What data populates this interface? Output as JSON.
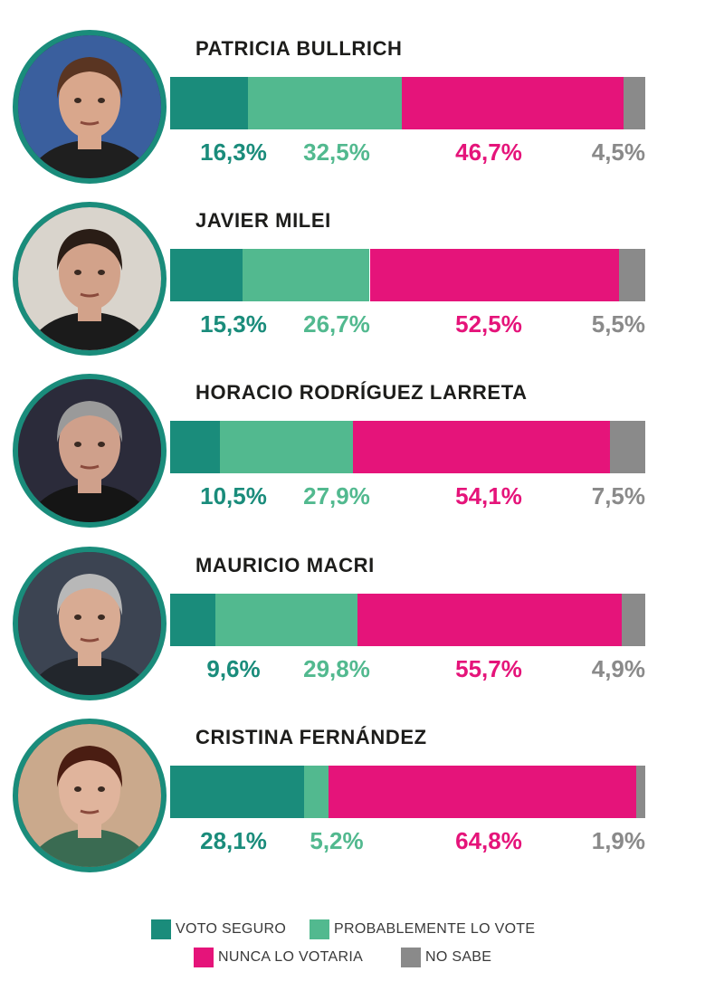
{
  "chart_data": {
    "type": "bar",
    "stacked": true,
    "orientation": "horizontal",
    "categories": [
      "PATRICIA BULLRICH",
      "JAVIER MILEI",
      "HORACIO RODRÍGUEZ LARRETA",
      "MAURICIO MACRI",
      "CRISTINA FERNÁNDEZ"
    ],
    "series": [
      {
        "name": "VOTO SEGURO",
        "color": "#1a8c7b",
        "values": [
          16.3,
          15.3,
          10.5,
          9.6,
          28.1
        ],
        "labels": [
          "16,3%",
          "15,3%",
          "10,5%",
          "9,6%",
          "28,1%"
        ]
      },
      {
        "name": "PROBABLEMENTE LO VOTE",
        "color": "#52b98f",
        "values": [
          32.5,
          26.7,
          27.9,
          29.8,
          5.2
        ],
        "labels": [
          "32,5%",
          "26,7%",
          "27,9%",
          "29,8%",
          "5,2%"
        ]
      },
      {
        "name": "NUNCA LO VOTARIA",
        "color": "#e5147a",
        "values": [
          46.7,
          52.5,
          54.1,
          55.7,
          64.8
        ],
        "labels": [
          "46,7%",
          "52,5%",
          "54,1%",
          "55,7%",
          "64,8%"
        ]
      },
      {
        "name": "NO SABE",
        "color": "#8a8a8a",
        "values": [
          4.5,
          5.5,
          7.5,
          4.9,
          1.9
        ],
        "labels": [
          "4,5%",
          "5,5%",
          "7,5%",
          "4,9%",
          "1,9%"
        ]
      }
    ],
    "legend_position": "bottom-center",
    "grid": false
  },
  "candidates": [
    {
      "name": "PATRICIA BULLRICH",
      "photo_icon": "patricia-bullrich-portrait-icon"
    },
    {
      "name": "JAVIER MILEI",
      "photo_icon": "javier-milei-portrait-icon"
    },
    {
      "name": "HORACIO RODRÍGUEZ LARRETA",
      "photo_icon": "horacio-rodriguez-larreta-portrait-icon"
    },
    {
      "name": "MAURICIO MACRI",
      "photo_icon": "mauricio-macri-portrait-icon"
    },
    {
      "name": "CRISTINA FERNÁNDEZ",
      "photo_icon": "cristina-fernandez-portrait-icon"
    }
  ],
  "colors": {
    "ring": "#1a8c7b",
    "name_text": "#1d1d1b"
  }
}
